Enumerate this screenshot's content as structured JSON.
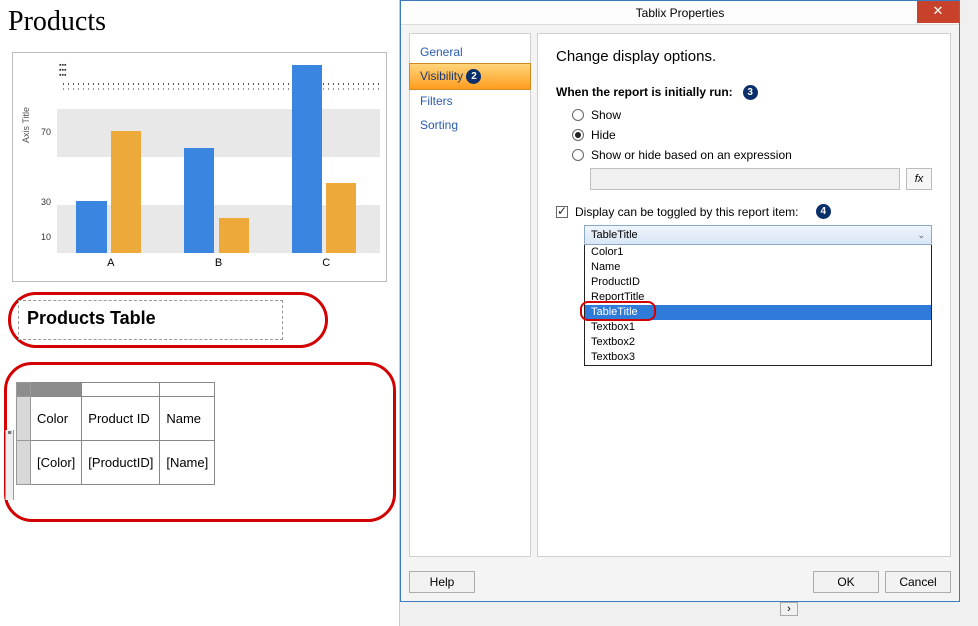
{
  "report": {
    "title": "Products",
    "chart": {
      "axis_title": "Axis Title",
      "categories": [
        "A",
        "B",
        "C"
      ],
      "yticks": [
        10,
        30,
        70
      ],
      "ylim": [
        0,
        110
      ],
      "series": [
        {
          "color": "#3a85e0",
          "values": [
            30,
            60,
            108
          ]
        },
        {
          "color": "#eda93a",
          "values": [
            70,
            20,
            40
          ]
        }
      ],
      "band_color_a": "#e8e8e8",
      "band_color_b": "#ffffff"
    },
    "table_title": "Products Table",
    "tablix": {
      "columns": [
        "Color",
        "Product ID",
        "Name"
      ],
      "data_row": [
        "[Color]",
        "[ProductID]",
        "[Name]"
      ]
    }
  },
  "dialog": {
    "title": "Tablix Properties",
    "nav": [
      "General",
      "Visibility",
      "Filters",
      "Sorting"
    ],
    "nav_active": "Visibility",
    "heading": "Change display options.",
    "when_label": "When the report is initially run:",
    "options": {
      "show": "Show",
      "hide": "Hide",
      "expr": "Show or hide based on an expression"
    },
    "selected_option": "hide",
    "fx_label": "fx",
    "toggle_label": "Display can be toggled by this report item:",
    "toggle_checked": true,
    "combo_value": "TableTitle",
    "dropdown_items": [
      "Color1",
      "Name",
      "ProductID",
      "ReportTitle",
      "TableTitle",
      "Textbox1",
      "Textbox2",
      "Textbox3"
    ],
    "dropdown_selected": "TableTitle",
    "buttons": {
      "help": "Help",
      "ok": "OK",
      "cancel": "Cancel"
    }
  },
  "badges": {
    "nav": "2",
    "when": "3",
    "toggle": "4"
  },
  "colors": {
    "highlight": "#d20000",
    "badge": "#0a2f6b",
    "dialog_border": "#3a7abf",
    "close_bg": "#c8412a",
    "dropdown_sel": "#2f7bd9"
  }
}
